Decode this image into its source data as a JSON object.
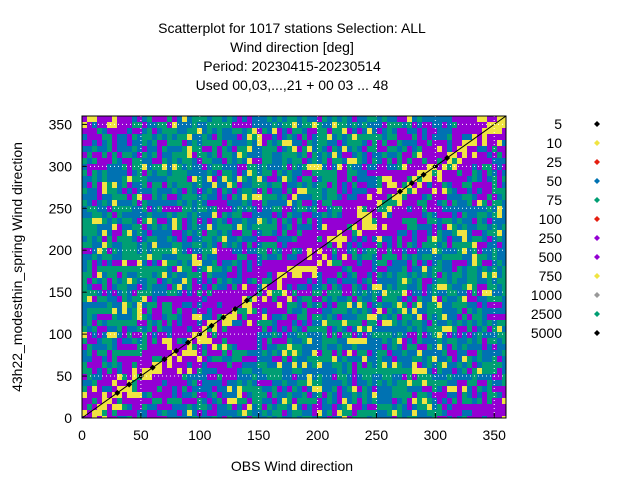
{
  "chart_data": {
    "type": "scatter",
    "title_lines": [
      "Scatterplot for 1017 stations Selection: ALL",
      "Wind direction [deg]",
      "Period: 20230415-20230514",
      "Used  00,03,...,21  + 00 03 ... 48"
    ],
    "xlabel": "OBS Wind direction",
    "ylabel": "43h22_modesthin_spring Wind direction",
    "xlim": [
      0,
      360
    ],
    "ylim": [
      0,
      360
    ],
    "x_ticks": [
      0,
      50,
      100,
      150,
      200,
      250,
      300,
      350
    ],
    "y_ticks": [
      0,
      50,
      100,
      150,
      200,
      250,
      300,
      350
    ],
    "grid": true,
    "legend_placement": "right",
    "legend": [
      {
        "label": "5",
        "color": "#000000"
      },
      {
        "label": "10",
        "color": "#f0e442"
      },
      {
        "label": "25",
        "color": "#e51e10"
      },
      {
        "label": "50",
        "color": "#0072b2"
      },
      {
        "label": "75",
        "color": "#009e73"
      },
      {
        "label": "100",
        "color": "#e51e10"
      },
      {
        "label": "250",
        "color": "#9400d3"
      },
      {
        "label": "500",
        "color": "#9400d3"
      },
      {
        "label": "750",
        "color": "#f0e442"
      },
      {
        "label": "1000",
        "color": "#999999"
      },
      {
        "label": "2500",
        "color": "#009e73"
      },
      {
        "label": "5000",
        "color": "#000000"
      }
    ],
    "series": [
      {
        "color": "#0072b2",
        "density": "background"
      },
      {
        "color": "#9400d3",
        "density": "band"
      },
      {
        "color": "#e51e10",
        "density": "scattered"
      },
      {
        "color": "#009e73",
        "density": "scattered"
      },
      {
        "color": "#f0e442",
        "density": "near-diagonal"
      },
      {
        "color": "#000000",
        "density": "diagonal",
        "x": [
          30,
          40,
          50,
          60,
          70,
          80,
          90,
          100,
          110,
          120,
          130,
          140,
          270,
          280,
          290,
          300,
          310
        ],
        "y": [
          30,
          40,
          50,
          60,
          70,
          80,
          90,
          100,
          110,
          120,
          130,
          140,
          270,
          280,
          290,
          300,
          310
        ]
      }
    ],
    "reference_line": {
      "from": [
        0,
        0
      ],
      "to": [
        360,
        360
      ]
    }
  }
}
